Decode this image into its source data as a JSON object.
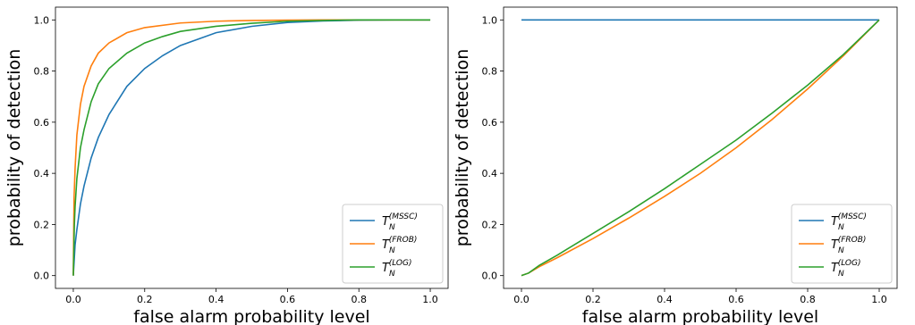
{
  "colors": {
    "mssc": "#1f77b4",
    "frob": "#ff7f0e",
    "log": "#2ca02c"
  },
  "chart_data": [
    {
      "type": "line",
      "xlabel": "false alarm probability level",
      "ylabel": "probability of detection",
      "xlim": [
        -0.05,
        1.05
      ],
      "ylim": [
        -0.05,
        1.05
      ],
      "xticks": [
        "0.0",
        "0.2",
        "0.4",
        "0.6",
        "0.8",
        "1.0"
      ],
      "yticks": [
        "0.0",
        "0.2",
        "0.4",
        "0.6",
        "0.8",
        "1.0"
      ],
      "legend_position": "lower-right",
      "series": [
        {
          "name": "T_N^(MSSC)",
          "base": "T",
          "sub": "N",
          "sup": "(MSSC)",
          "color": "#1f77b4",
          "x": [
            0,
            0.005,
            0.01,
            0.02,
            0.03,
            0.05,
            0.07,
            0.1,
            0.15,
            0.2,
            0.25,
            0.3,
            0.4,
            0.5,
            0.6,
            0.7,
            0.8,
            0.9,
            1.0
          ],
          "y": [
            0.0,
            0.12,
            0.18,
            0.28,
            0.35,
            0.46,
            0.54,
            0.63,
            0.74,
            0.81,
            0.86,
            0.9,
            0.95,
            0.975,
            0.99,
            0.996,
            0.999,
            1.0,
            1.0
          ]
        },
        {
          "name": "T_N^(FROB)",
          "base": "T",
          "sub": "N",
          "sup": "(FROB)",
          "color": "#ff7f0e",
          "x": [
            0,
            0.002,
            0.005,
            0.01,
            0.02,
            0.03,
            0.05,
            0.07,
            0.1,
            0.15,
            0.2,
            0.3,
            0.4,
            0.5,
            0.6,
            0.7,
            0.8,
            1.0
          ],
          "y": [
            0.0,
            0.3,
            0.42,
            0.55,
            0.67,
            0.74,
            0.82,
            0.87,
            0.91,
            0.95,
            0.97,
            0.988,
            0.995,
            0.998,
            0.999,
            1.0,
            1.0,
            1.0
          ]
        },
        {
          "name": "T_N^(LOG)",
          "base": "T",
          "sub": "N",
          "sup": "(LOG)",
          "color": "#2ca02c",
          "x": [
            0,
            0.003,
            0.005,
            0.01,
            0.02,
            0.03,
            0.05,
            0.07,
            0.1,
            0.15,
            0.2,
            0.25,
            0.3,
            0.4,
            0.5,
            0.6,
            0.7,
            0.8,
            0.9,
            1.0
          ],
          "y": [
            0.0,
            0.2,
            0.27,
            0.38,
            0.5,
            0.57,
            0.68,
            0.75,
            0.81,
            0.87,
            0.91,
            0.935,
            0.955,
            0.975,
            0.987,
            0.995,
            0.998,
            1.0,
            1.0,
            1.0
          ]
        }
      ]
    },
    {
      "type": "line",
      "xlabel": "false alarm probability level",
      "ylabel": "probability of detection",
      "xlim": [
        -0.05,
        1.05
      ],
      "ylim": [
        -0.05,
        1.05
      ],
      "xticks": [
        "0.0",
        "0.2",
        "0.4",
        "0.6",
        "0.8",
        "1.0"
      ],
      "yticks": [
        "0.0",
        "0.2",
        "0.4",
        "0.6",
        "0.8",
        "1.0"
      ],
      "legend_position": "lower-right",
      "series": [
        {
          "name": "T_N^(MSSC)",
          "base": "T",
          "sub": "N",
          "sup": "(MSSC)",
          "color": "#1f77b4",
          "x": [
            0,
            1.0
          ],
          "y": [
            1.0,
            1.0
          ]
        },
        {
          "name": "T_N^(FROB)",
          "base": "T",
          "sub": "N",
          "sup": "(FROB)",
          "color": "#ff7f0e",
          "x": [
            0,
            0.02,
            0.05,
            0.1,
            0.2,
            0.3,
            0.4,
            0.5,
            0.6,
            0.7,
            0.8,
            0.9,
            1.0
          ],
          "y": [
            0.0,
            0.01,
            0.035,
            0.07,
            0.145,
            0.225,
            0.31,
            0.4,
            0.5,
            0.61,
            0.73,
            0.86,
            1.0
          ]
        },
        {
          "name": "T_N^(LOG)",
          "base": "T",
          "sub": "N",
          "sup": "(LOG)",
          "color": "#2ca02c",
          "x": [
            0,
            0.02,
            0.05,
            0.1,
            0.2,
            0.3,
            0.4,
            0.5,
            0.6,
            0.7,
            0.8,
            0.9,
            1.0
          ],
          "y": [
            0.0,
            0.01,
            0.04,
            0.08,
            0.165,
            0.25,
            0.34,
            0.435,
            0.53,
            0.635,
            0.745,
            0.865,
            1.0
          ]
        }
      ]
    }
  ]
}
